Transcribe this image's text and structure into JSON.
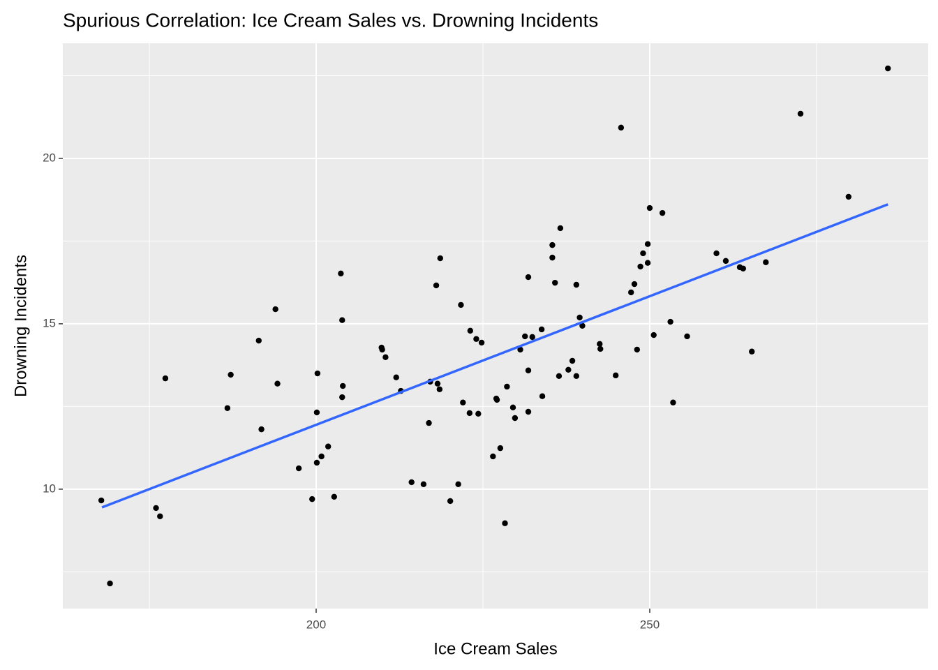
{
  "chart_data": {
    "type": "scatter",
    "title": "Spurious Correlation: Ice Cream Sales vs. Drowning Incidents",
    "x_label": "Ice Cream Sales",
    "y_label": "Drowning Incidents",
    "color": "#000000",
    "grid": true,
    "xlim": [
      162.03,
      291.74
    ],
    "ylim": [
      6.39,
      23.48
    ],
    "xticks": [
      200,
      250
    ],
    "yticks": [
      10,
      15,
      20
    ],
    "xminor": [
      175,
      225,
      275
    ],
    "yminor": [
      7.5,
      12.5,
      17.5,
      22.5
    ],
    "x": [
      167.8,
      169.1,
      176.0,
      176.6,
      177.4,
      186.7,
      187.2,
      191.4,
      191.8,
      193.9,
      194.2,
      197.4,
      199.4,
      200.2,
      200.1,
      200.1,
      200.8,
      201.8,
      202.7,
      203.7,
      203.9,
      203.9,
      204.0,
      209.8,
      209.9,
      210.4,
      212.0,
      212.7,
      214.3,
      216.1,
      216.9,
      217.1,
      218.0,
      218.2,
      218.5,
      218.6,
      220.1,
      221.3,
      221.7,
      222.0,
      223.0,
      223.1,
      224.0,
      224.3,
      224.8,
      226.5,
      227.0,
      227.1,
      227.6,
      228.3,
      228.6,
      229.5,
      229.8,
      230.6,
      231.3,
      231.8,
      231.8,
      231.8,
      232.4,
      233.8,
      233.9,
      235.4,
      235.4,
      235.8,
      236.4,
      236.6,
      237.8,
      238.4,
      239.0,
      239.0,
      239.5,
      239.9,
      242.5,
      242.6,
      244.9,
      245.7,
      247.2,
      247.7,
      248.1,
      248.6,
      249.0,
      249.7,
      249.7,
      250.0,
      250.6,
      251.9,
      253.1,
      253.5,
      255.6,
      260.0,
      261.4,
      263.5,
      264.0,
      265.3,
      267.4,
      272.6,
      279.8,
      285.7
    ],
    "y": [
      9.66,
      7.15,
      9.43,
      9.18,
      13.35,
      12.45,
      13.46,
      14.49,
      11.81,
      15.44,
      13.19,
      10.63,
      9.7,
      13.5,
      12.32,
      10.8,
      10.99,
      11.29,
      9.77,
      16.52,
      15.11,
      12.78,
      13.12,
      14.28,
      14.22,
      13.99,
      13.38,
      12.97,
      10.21,
      10.15,
      12.0,
      13.25,
      16.16,
      13.19,
      13.02,
      16.98,
      9.64,
      10.15,
      15.57,
      12.62,
      12.3,
      14.79,
      14.54,
      12.28,
      14.43,
      10.99,
      12.74,
      12.7,
      11.24,
      8.97,
      13.1,
      12.47,
      12.15,
      14.22,
      14.62,
      16.41,
      12.34,
      13.59,
      14.6,
      14.83,
      12.81,
      17.0,
      17.38,
      16.24,
      13.42,
      17.89,
      13.61,
      13.88,
      16.18,
      13.42,
      15.19,
      14.94,
      14.39,
      14.24,
      13.44,
      20.93,
      15.95,
      16.2,
      14.22,
      16.73,
      17.13,
      16.84,
      17.41,
      18.5,
      14.66,
      18.35,
      15.06,
      12.62,
      14.62,
      17.13,
      16.9,
      16.71,
      16.67,
      14.16,
      16.86,
      21.35,
      18.84,
      22.72
    ],
    "trend": {
      "x": [
        167.9,
        285.7
      ],
      "y": [
        9.45,
        18.61
      ],
      "color": "#3366ff"
    }
  }
}
